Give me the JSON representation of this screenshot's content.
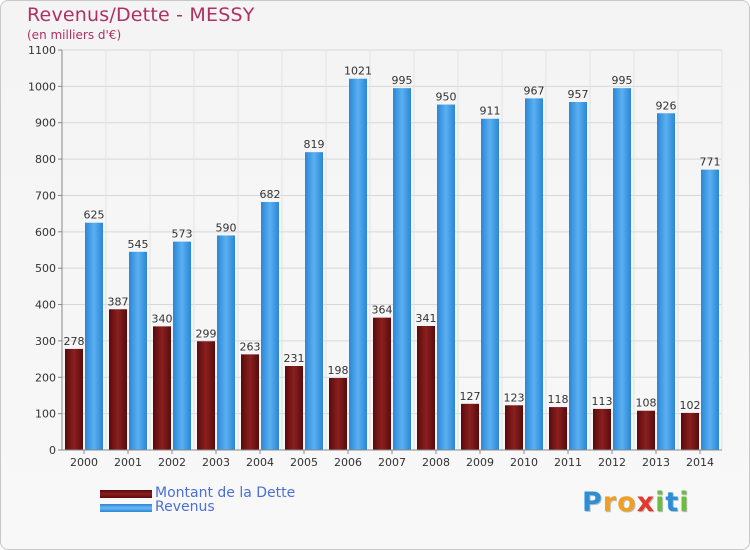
{
  "chart_data": {
    "type": "bar",
    "title": "Revenus/Dette - MESSY",
    "subtitle": "(en milliers d'€)",
    "categories": [
      "2000",
      "2001",
      "2002",
      "2003",
      "2004",
      "2005",
      "2006",
      "2007",
      "2008",
      "2009",
      "2010",
      "2011",
      "2012",
      "2013",
      "2014"
    ],
    "series": [
      {
        "name": "Montant de la Dette",
        "color": "#7a1414",
        "values": [
          278,
          387,
          340,
          299,
          263,
          231,
          198,
          364,
          341,
          127,
          123,
          118,
          113,
          108,
          102
        ]
      },
      {
        "name": "Revenus",
        "color": "#3c9be6",
        "values": [
          625,
          545,
          573,
          590,
          682,
          819,
          1021,
          995,
          950,
          911,
          967,
          957,
          995,
          926,
          771
        ]
      }
    ],
    "ylim": [
      0,
      1100
    ],
    "yticks": [
      0,
      100,
      200,
      300,
      400,
      500,
      600,
      700,
      800,
      900,
      1000,
      1100
    ],
    "grid": true,
    "legend": "bottom-left"
  },
  "logo": {
    "letters": [
      "P",
      "r",
      "o",
      "x",
      "i",
      "t",
      "i"
    ],
    "colors": [
      "#2c8fd6",
      "#f0a020",
      "#f0a020",
      "#e23a2a",
      "#6abf3a",
      "#2c8fd6",
      "#6abf3a"
    ]
  }
}
